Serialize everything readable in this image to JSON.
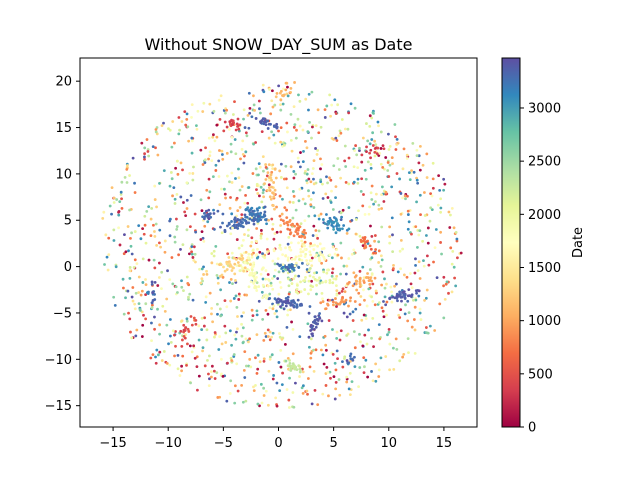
{
  "chart_data": {
    "type": "scatter",
    "title": "Without SNOW_DAY_SUM as Date",
    "xlabel": "",
    "ylabel": "",
    "xlim": [
      -18,
      18
    ],
    "ylim": [
      -17.3,
      22.5
    ],
    "xticks": [
      -15,
      -10,
      -5,
      0,
      5,
      10,
      15
    ],
    "yticks": [
      -15,
      -10,
      -5,
      0,
      5,
      10,
      15,
      20
    ],
    "grid": false,
    "colorbar": {
      "label": "Date",
      "range": [
        0,
        3470
      ],
      "ticks": [
        0,
        500,
        1000,
        1500,
        2000,
        2500,
        3000
      ],
      "colormap": "Spectral",
      "colors": [
        "#9e0142",
        "#d53e4f",
        "#f46d43",
        "#fdae61",
        "#fee08b",
        "#ffffbf",
        "#e6f598",
        "#abdda4",
        "#66c2a5",
        "#3288bd",
        "#5e4fa2"
      ]
    },
    "marker_size": 1.4,
    "clusters": [
      {
        "x": -3.2,
        "y": 4.8,
        "c": 3300,
        "n": 60,
        "spread": 0.7
      },
      {
        "x": -2.0,
        "y": 5.5,
        "c": 3200,
        "n": 40,
        "spread": 0.5
      },
      {
        "x": 0.8,
        "y": -3.9,
        "c": 3350,
        "n": 45,
        "spread": 0.6
      },
      {
        "x": 1.0,
        "y": 0.0,
        "c": 3250,
        "n": 35,
        "spread": 0.5
      },
      {
        "x": 5.2,
        "y": 4.5,
        "c": 3100,
        "n": 40,
        "spread": 0.6
      },
      {
        "x": 11.0,
        "y": -3.2,
        "c": 3400,
        "n": 40,
        "spread": 0.5
      },
      {
        "x": 3.3,
        "y": -6.2,
        "c": 3400,
        "n": 30,
        "spread": 0.5
      },
      {
        "x": -1.2,
        "y": 15.5,
        "c": 3350,
        "n": 25,
        "spread": 0.5
      },
      {
        "x": 1.4,
        "y": -10.9,
        "c": 2300,
        "n": 25,
        "spread": 0.4
      },
      {
        "x": 1.5,
        "y": 4.0,
        "c": 800,
        "n": 40,
        "spread": 0.6
      },
      {
        "x": -2.0,
        "y": -0.5,
        "c": 1800,
        "n": 80,
        "spread": 1.4
      },
      {
        "x": 2.0,
        "y": 1.5,
        "c": 1700,
        "n": 70,
        "spread": 1.4
      },
      {
        "x": -4.5,
        "y": 0.0,
        "c": 1300,
        "n": 40,
        "spread": 1.0
      },
      {
        "x": 3.5,
        "y": -1.5,
        "c": 2000,
        "n": 40,
        "spread": 1.0
      },
      {
        "x": -0.5,
        "y": 8.8,
        "c": 1200,
        "n": 35,
        "spread": 1.0
      },
      {
        "x": 7.5,
        "y": -1.5,
        "c": 1000,
        "n": 30,
        "spread": 0.8
      },
      {
        "x": -8.5,
        "y": -7.0,
        "c": 450,
        "n": 20,
        "spread": 0.6
      },
      {
        "x": -4.0,
        "y": 15.3,
        "c": 400,
        "n": 20,
        "spread": 0.6
      },
      {
        "x": 8.0,
        "y": 2.5,
        "c": 700,
        "n": 20,
        "spread": 0.6
      },
      {
        "x": 5.5,
        "y": -3.8,
        "c": 900,
        "n": 25,
        "spread": 0.7
      },
      {
        "x": -6.5,
        "y": 5.5,
        "c": 3350,
        "n": 18,
        "spread": 0.5
      },
      {
        "x": 8.5,
        "y": 12.5,
        "c": 400,
        "n": 15,
        "spread": 0.5
      },
      {
        "x": -11.5,
        "y": -3.0,
        "c": 3300,
        "n": 12,
        "spread": 0.4
      },
      {
        "x": 6.5,
        "y": -10.0,
        "c": 3300,
        "n": 10,
        "spread": 0.4
      },
      {
        "x": 0.5,
        "y": 18.5,
        "c": 1100,
        "n": 15,
        "spread": 0.6
      }
    ],
    "background_points": 1500
  }
}
